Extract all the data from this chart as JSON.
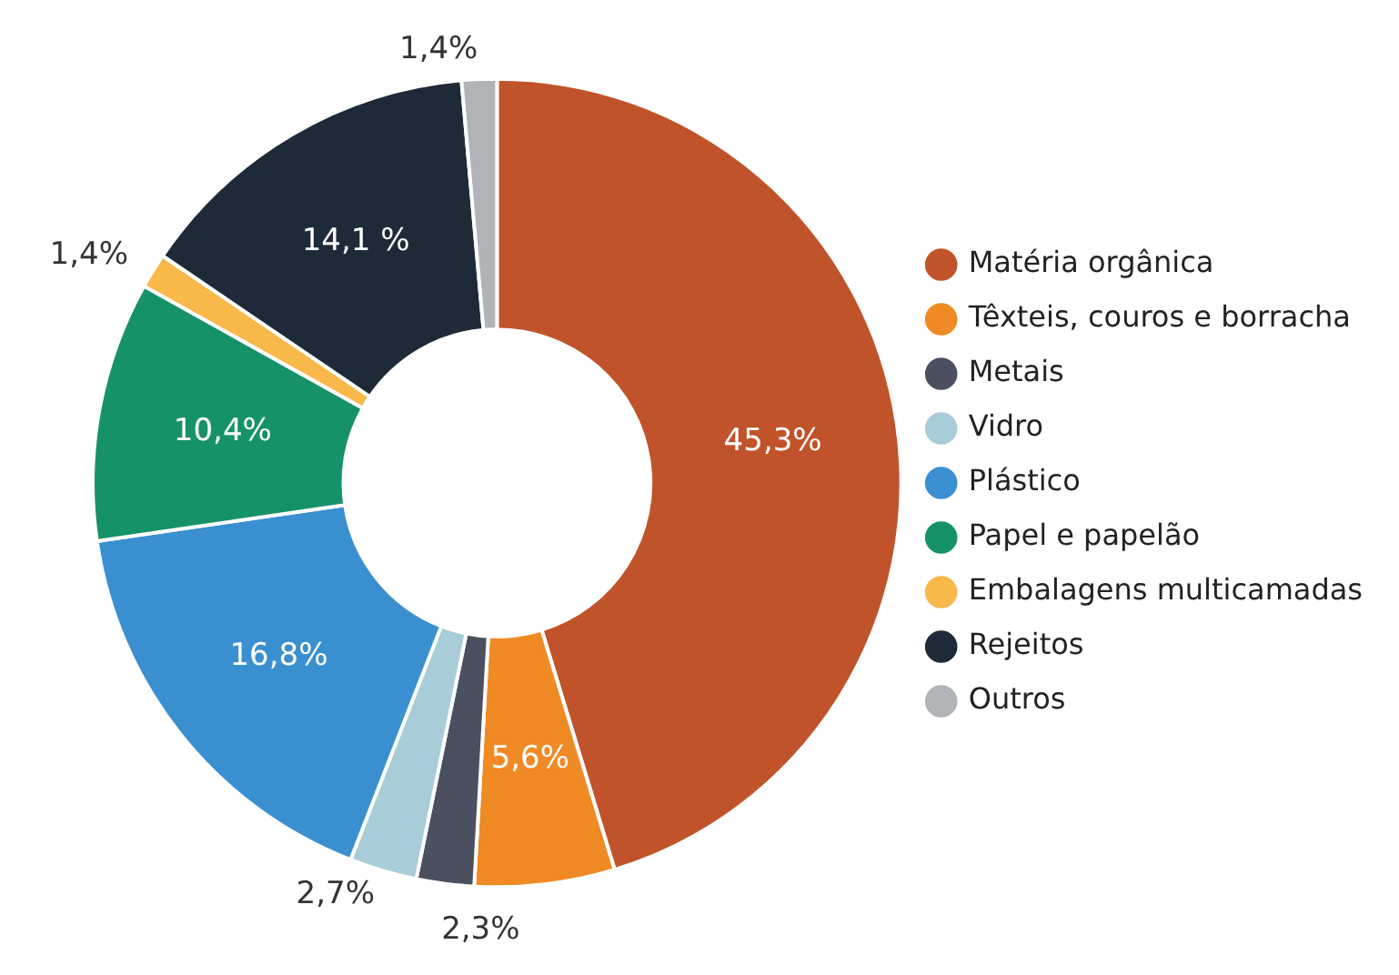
{
  "chart_data": {
    "type": "donut",
    "categories": [
      "Matéria orgânica",
      "Têxteis, couros e borracha",
      "Metais",
      "Vidro",
      "Plástico",
      "Papel e papelão",
      "Embalagens multicamadas",
      "Rejeitos",
      "Outros"
    ],
    "values": [
      45.3,
      5.6,
      2.3,
      2.7,
      16.8,
      10.4,
      1.4,
      14.1,
      1.4
    ],
    "colors": [
      "#c0532a",
      "#f08a24",
      "#4a5060",
      "#a8ccd8",
      "#3a8fd0",
      "#16926a",
      "#f8b84a",
      "#1e2a38",
      "#b0b4b8"
    ],
    "value_labels": [
      "45,3%",
      "5,6%",
      "2,3%",
      "2,7%",
      "16,8%",
      "10,4%",
      "1,4%",
      "14,1 %",
      "1,4%"
    ],
    "legend": "right"
  }
}
